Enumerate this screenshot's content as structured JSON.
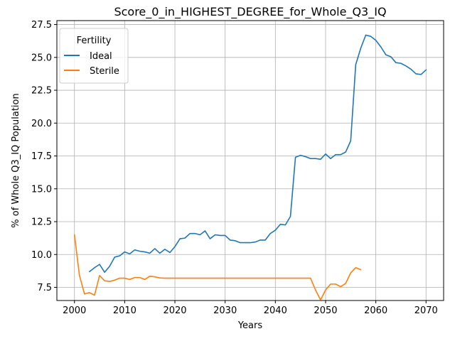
{
  "chart_data": {
    "type": "line",
    "title": "Score_0_in_HIGHEST_DEGREE_for_Whole_Q3_IQ",
    "xlabel": "Years",
    "ylabel": "% of Whole Q3_IQ Population",
    "xlim": [
      1996.5,
      2073.5
    ],
    "ylim": [
      6.5,
      27.8
    ],
    "xticks": [
      2000,
      2010,
      2020,
      2030,
      2040,
      2050,
      2060,
      2070
    ],
    "yticks": [
      7.5,
      10.0,
      12.5,
      15.0,
      17.5,
      20.0,
      22.5,
      25.0,
      27.5
    ],
    "xtick_labels": [
      "2000",
      "2010",
      "2020",
      "2030",
      "2040",
      "2050",
      "2060",
      "2070"
    ],
    "ytick_labels": [
      "7.5",
      "10.0",
      "12.5",
      "15.0",
      "17.5",
      "20.0",
      "22.5",
      "25.0",
      "27.5"
    ],
    "grid": true,
    "legend": {
      "title": "Fertility",
      "placement": "top-left"
    },
    "series": [
      {
        "name": "Ideal",
        "color": "#1f77b4",
        "x": [
          2003,
          2004,
          2005,
          2006,
          2007,
          2008,
          2009,
          2010,
          2011,
          2012,
          2013,
          2014,
          2015,
          2016,
          2017,
          2018,
          2019,
          2020,
          2021,
          2022,
          2023,
          2024,
          2025,
          2026,
          2027,
          2028,
          2029,
          2030,
          2031,
          2032,
          2033,
          2034,
          2035,
          2036,
          2037,
          2038,
          2039,
          2040,
          2041,
          2042,
          2043,
          2044,
          2045,
          2046,
          2047,
          2048,
          2049,
          2050,
          2051,
          2052,
          2053,
          2054,
          2055,
          2056,
          2057,
          2058,
          2059,
          2060,
          2061,
          2062,
          2063,
          2064,
          2065,
          2066,
          2067,
          2068,
          2069,
          2070
        ],
        "values": [
          8.7,
          9.0,
          9.25,
          8.65,
          9.1,
          9.8,
          9.9,
          10.2,
          10.05,
          10.35,
          10.25,
          10.2,
          10.1,
          10.45,
          10.1,
          10.4,
          10.15,
          10.6,
          11.2,
          11.25,
          11.6,
          11.6,
          11.5,
          11.8,
          11.2,
          11.5,
          11.45,
          11.45,
          11.1,
          11.05,
          10.9,
          10.9,
          10.9,
          10.95,
          11.1,
          11.1,
          11.6,
          11.85,
          12.3,
          12.25,
          12.9,
          17.4,
          17.55,
          17.45,
          17.3,
          17.3,
          17.25,
          17.65,
          17.3,
          17.6,
          17.6,
          17.8,
          18.65,
          24.45,
          25.7,
          26.7,
          26.6,
          26.3,
          25.8,
          25.2,
          25.05,
          24.6,
          24.55,
          24.35,
          24.1,
          23.75,
          23.7,
          24.05
        ]
      },
      {
        "name": "Sterile",
        "color": "#ff7f0e",
        "x": [
          2000,
          2001,
          2002,
          2003,
          2004,
          2005,
          2006,
          2007,
          2008,
          2009,
          2010,
          2011,
          2012,
          2013,
          2014,
          2015,
          2016,
          2017,
          2018,
          2019,
          2020,
          2021,
          2022,
          2023,
          2024,
          2025,
          2026,
          2027,
          2028,
          2029,
          2030,
          2031,
          2032,
          2033,
          2034,
          2035,
          2036,
          2037,
          2038,
          2039,
          2040,
          2041,
          2042,
          2043,
          2044,
          2045,
          2046,
          2047,
          2048,
          2049,
          2050,
          2051,
          2052,
          2053,
          2054,
          2055,
          2056,
          2057
        ],
        "values": [
          11.5,
          8.4,
          7.0,
          7.1,
          6.9,
          8.4,
          8.0,
          7.95,
          8.05,
          8.2,
          8.2,
          8.1,
          8.25,
          8.25,
          8.1,
          8.35,
          8.3,
          8.22,
          8.2,
          8.2,
          8.2,
          8.2,
          8.2,
          8.2,
          8.2,
          8.2,
          8.2,
          8.2,
          8.2,
          8.2,
          8.2,
          8.2,
          8.2,
          8.2,
          8.2,
          8.2,
          8.2,
          8.2,
          8.2,
          8.2,
          8.2,
          8.2,
          8.2,
          8.2,
          8.2,
          8.2,
          8.2,
          8.2,
          7.3,
          6.55,
          7.3,
          7.75,
          7.75,
          7.55,
          7.8,
          8.6,
          9.0,
          8.85
        ]
      }
    ]
  }
}
